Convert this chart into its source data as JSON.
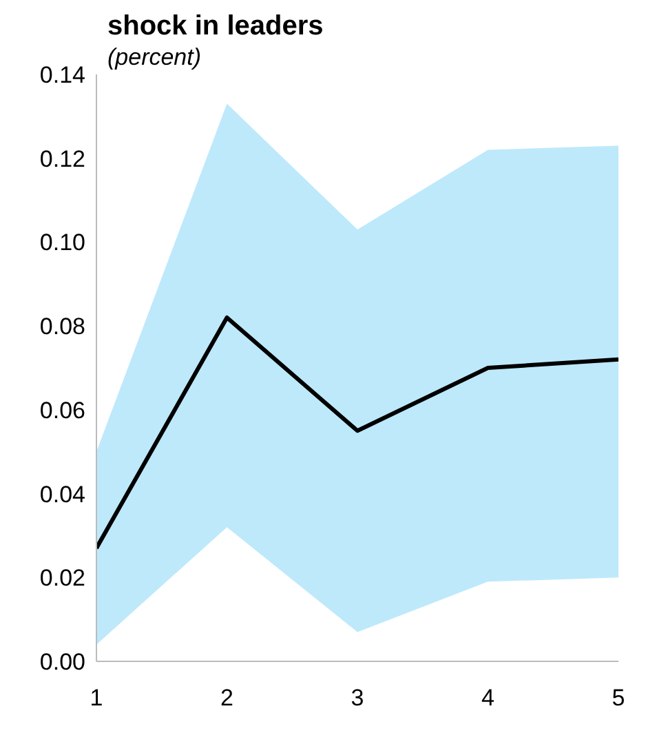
{
  "chart_data": {
    "type": "line",
    "title": "shock in leaders",
    "subtitle": "(percent)",
    "x": [
      1,
      2,
      3,
      4,
      5
    ],
    "xlim": [
      1,
      5
    ],
    "xticks": [
      1,
      2,
      3,
      4,
      5
    ],
    "ylim": [
      0,
      0.14
    ],
    "yticks": [
      {
        "value": 0,
        "label": "0.00"
      },
      {
        "value": 0.02,
        "label": "0.02"
      },
      {
        "value": 0.04,
        "label": "0.04"
      },
      {
        "value": 0.06,
        "label": "0.06"
      },
      {
        "value": 0.08,
        "label": "0.08"
      },
      {
        "value": 0.1,
        "label": "0.10"
      },
      {
        "value": 0.12,
        "label": "0.12"
      },
      {
        "value": 0.14,
        "label": "0.14"
      }
    ],
    "series": [
      {
        "color": "#000000",
        "values": [
          0.027,
          0.082,
          0.055,
          0.07,
          0.072
        ],
        "lower": [
          0.004,
          0.032,
          0.007,
          0.019,
          0.02
        ],
        "upper": [
          0.05,
          0.133,
          0.103,
          0.122,
          0.123
        ]
      }
    ],
    "marker": "none",
    "line_style": "solid",
    "grid": false,
    "legend": false
  }
}
